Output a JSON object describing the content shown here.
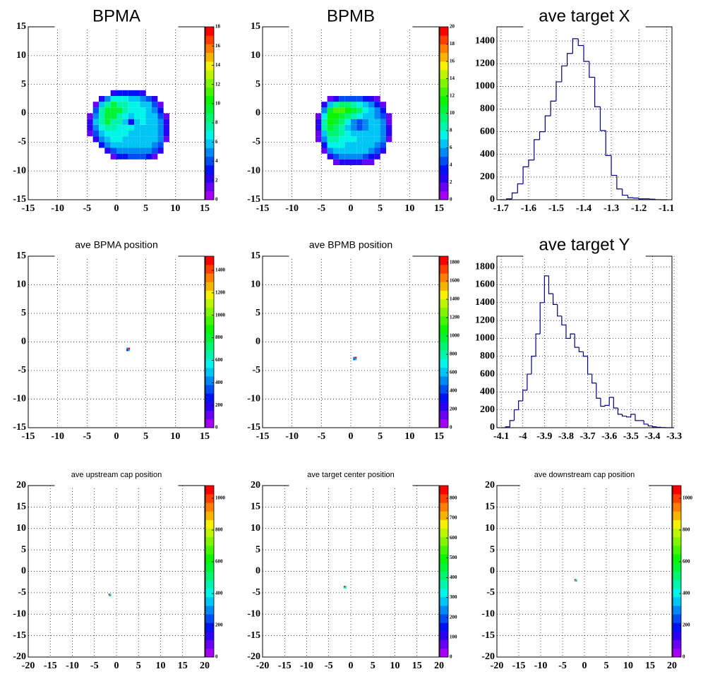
{
  "chart_data": [
    {
      "type": "heatmap",
      "title": "BPMA",
      "xlim": [
        -15,
        15
      ],
      "ylim": [
        -15,
        15
      ],
      "xticks": [
        -15,
        -10,
        -5,
        0,
        5,
        10,
        15
      ],
      "yticks": [
        -15,
        -10,
        -5,
        0,
        5,
        10,
        15
      ],
      "grid": true,
      "xbins": [
        -5,
        -4,
        -3,
        -2,
        -1,
        0,
        1,
        2,
        3,
        4,
        5,
        6,
        7,
        8,
        9
      ],
      "ybins": [
        -8,
        -7,
        -6,
        -5,
        -4,
        -3,
        -2,
        -1,
        0,
        1,
        2,
        3,
        4
      ],
      "z": [
        [
          0,
          0,
          0,
          0,
          1,
          3,
          3,
          4,
          4,
          4,
          3,
          1,
          0,
          0
        ],
        [
          0,
          0,
          0,
          2,
          4,
          5,
          5,
          5,
          5,
          5,
          5,
          4,
          2,
          0
        ],
        [
          0,
          0,
          3,
          5,
          6,
          6,
          6,
          6,
          6,
          6,
          6,
          5,
          4,
          0
        ],
        [
          0,
          2,
          5,
          6,
          7,
          7,
          6,
          6,
          6,
          6,
          6,
          6,
          5,
          1
        ],
        [
          1,
          4,
          6,
          7,
          7,
          7,
          7,
          6,
          6,
          6,
          6,
          6,
          5,
          2
        ],
        [
          2,
          5,
          7,
          8,
          8,
          7,
          7,
          7,
          6,
          6,
          6,
          6,
          5,
          2
        ],
        [
          2,
          6,
          8,
          9,
          8,
          8,
          6,
          3,
          6,
          7,
          6,
          6,
          5,
          2
        ],
        [
          1,
          5,
          8,
          9,
          9,
          8,
          7,
          6,
          7,
          7,
          6,
          6,
          4,
          1
        ],
        [
          0,
          4,
          8,
          9,
          9,
          9,
          8,
          7,
          7,
          7,
          6,
          5,
          3,
          0
        ],
        [
          0,
          1,
          6,
          8,
          9,
          8,
          8,
          7,
          7,
          6,
          6,
          4,
          1,
          0
        ],
        [
          0,
          0,
          2,
          5,
          7,
          7,
          7,
          6,
          6,
          5,
          4,
          2,
          0,
          0
        ],
        [
          0,
          0,
          0,
          0,
          2,
          3,
          3,
          3,
          3,
          2,
          0,
          0,
          0,
          0
        ]
      ],
      "zlim": [
        0,
        18
      ],
      "zticks": [
        0,
        2,
        4,
        6,
        8,
        10,
        12,
        14,
        16,
        18
      ]
    },
    {
      "type": "heatmap",
      "title": "BPMB",
      "xlim": [
        -15,
        15
      ],
      "ylim": [
        -15,
        15
      ],
      "xticks": [
        -15,
        -10,
        -5,
        0,
        5,
        10,
        15
      ],
      "yticks": [
        -15,
        -10,
        -5,
        0,
        5,
        10,
        15
      ],
      "grid": true,
      "xbins": [
        -6,
        -5,
        -4,
        -3,
        -2,
        -1,
        0,
        1,
        2,
        3,
        4,
        5,
        6,
        7,
        8
      ],
      "ybins": [
        -9,
        -8,
        -7,
        -6,
        -5,
        -4,
        -3,
        -2,
        -1,
        0,
        1,
        2,
        3
      ],
      "z": [
        [
          0,
          0,
          0,
          1,
          2,
          2,
          2,
          2,
          1,
          1,
          0,
          0,
          0,
          0
        ],
        [
          0,
          0,
          2,
          4,
          5,
          5,
          5,
          5,
          4,
          3,
          2,
          0,
          0,
          0
        ],
        [
          0,
          1,
          5,
          6,
          6,
          6,
          6,
          6,
          6,
          5,
          4,
          2,
          0,
          0
        ],
        [
          0,
          3,
          7,
          7,
          7,
          6,
          6,
          6,
          6,
          6,
          5,
          4,
          0,
          0
        ],
        [
          1,
          5,
          8,
          8,
          7,
          7,
          7,
          6,
          6,
          6,
          6,
          5,
          1,
          0
        ],
        [
          1,
          6,
          9,
          9,
          8,
          7,
          6,
          6,
          6,
          6,
          6,
          5,
          2,
          0
        ],
        [
          2,
          8,
          10,
          9,
          8,
          6,
          5,
          4,
          5,
          6,
          6,
          5,
          2,
          0
        ],
        [
          2,
          8,
          11,
          10,
          9,
          7,
          5,
          4,
          5,
          6,
          6,
          5,
          1,
          0
        ],
        [
          1,
          7,
          11,
          11,
          10,
          9,
          8,
          7,
          6,
          6,
          5,
          4,
          1,
          0
        ],
        [
          0,
          5,
          10,
          12,
          12,
          11,
          10,
          9,
          7,
          6,
          5,
          3,
          0,
          0
        ],
        [
          0,
          2,
          6,
          8,
          9,
          9,
          8,
          7,
          6,
          5,
          3,
          1,
          0,
          0
        ],
        [
          0,
          0,
          1,
          2,
          4,
          4,
          4,
          4,
          3,
          2,
          1,
          0,
          0,
          0
        ]
      ],
      "zlim": [
        0,
        20
      ],
      "zticks": [
        0,
        2,
        4,
        6,
        8,
        10,
        12,
        14,
        16,
        18,
        20
      ]
    },
    {
      "type": "histogram",
      "title": "ave target X",
      "xlim": [
        -1.715,
        -1.08
      ],
      "ylim": [
        0,
        1525
      ],
      "xticks": [
        -1.7,
        -1.6,
        -1.5,
        -1.4,
        -1.3,
        -1.2,
        -1.1
      ],
      "yticks": [
        0,
        200,
        400,
        600,
        800,
        1000,
        1200,
        1400
      ],
      "grid": true,
      "color": "#000080",
      "bins": [
        -1.7,
        -1.68,
        -1.66,
        -1.64,
        -1.62,
        -1.6,
        -1.58,
        -1.56,
        -1.54,
        -1.52,
        -1.5,
        -1.48,
        -1.46,
        -1.44,
        -1.42,
        -1.4,
        -1.38,
        -1.36,
        -1.34,
        -1.32,
        -1.3,
        -1.28,
        -1.26,
        -1.24,
        -1.22,
        -1.2,
        -1.18,
        -1.16,
        -1.14,
        -1.12,
        -1.1
      ],
      "values": [
        0,
        8,
        60,
        140,
        290,
        350,
        530,
        600,
        740,
        870,
        1040,
        1180,
        1290,
        1420,
        1360,
        1220,
        1080,
        820,
        610,
        390,
        215,
        95,
        40,
        18,
        15,
        8,
        8,
        5,
        1,
        0
      ]
    },
    {
      "type": "heatmap",
      "title": "ave BPMA position",
      "xlim": [
        -15,
        15
      ],
      "ylim": [
        -15,
        15
      ],
      "xticks": [
        -15,
        -10,
        -5,
        0,
        5,
        10,
        15
      ],
      "yticks": [
        -15,
        -10,
        -5,
        0,
        5,
        10,
        15
      ],
      "grid": true,
      "xbins": [
        1.7,
        2,
        2.3
      ],
      "ybins": [
        -1.6,
        -1.3,
        -1
      ],
      "z": [
        [
          300,
          500
        ],
        [
          400,
          1500
        ]
      ],
      "zlim": [
        0,
        1526
      ],
      "zticks": [
        0,
        200,
        400,
        600,
        800,
        1000,
        1200,
        1400
      ]
    },
    {
      "type": "heatmap",
      "title": "ave BPMB position",
      "xlim": [
        -15,
        15
      ],
      "ylim": [
        -15,
        15
      ],
      "xticks": [
        -15,
        -10,
        -5,
        0,
        5,
        10,
        15
      ],
      "yticks": [
        -15,
        -10,
        -5,
        0,
        5,
        10,
        15
      ],
      "grid": true,
      "xbins": [
        0.4,
        0.7,
        1
      ],
      "ybins": [
        -3.2,
        -2.9,
        -2.6
      ],
      "z": [
        [
          400,
          600
        ],
        [
          500,
          1850
        ]
      ],
      "zlim": [
        0,
        1870
      ],
      "zticks": [
        0,
        200,
        400,
        600,
        800,
        1000,
        1200,
        1400,
        1600,
        1800
      ]
    },
    {
      "type": "histogram",
      "title": "ave target Y",
      "xlim": [
        -4.12,
        -3.31
      ],
      "ylim": [
        0,
        1920
      ],
      "xticks": [
        -4.1,
        -4,
        -3.9,
        -3.8,
        -3.7,
        -3.6,
        -3.5,
        -3.4,
        -3.3
      ],
      "yticks": [
        0,
        200,
        400,
        600,
        800,
        1000,
        1200,
        1400,
        1600,
        1800
      ],
      "grid": true,
      "color": "#000080",
      "bins": [
        -4.1,
        -4.08,
        -4.06,
        -4.04,
        -4.02,
        -4,
        -3.98,
        -3.96,
        -3.94,
        -3.92,
        -3.9,
        -3.88,
        -3.86,
        -3.84,
        -3.82,
        -3.8,
        -3.78,
        -3.76,
        -3.74,
        -3.72,
        -3.7,
        -3.68,
        -3.66,
        -3.64,
        -3.62,
        -3.6,
        -3.58,
        -3.56,
        -3.54,
        -3.52,
        -3.5,
        -3.48,
        -3.46,
        -3.44,
        -3.42,
        -3.4,
        -3.38,
        -3.36,
        -3.34,
        -3.32,
        -3.3
      ],
      "values": [
        0,
        10,
        80,
        200,
        300,
        420,
        600,
        800,
        1050,
        1400,
        1700,
        1500,
        1380,
        1250,
        1150,
        1000,
        1050,
        900,
        850,
        800,
        600,
        500,
        330,
        240,
        250,
        340,
        220,
        150,
        130,
        120,
        150,
        80,
        80,
        40,
        20,
        10,
        5,
        2,
        0,
        0
      ]
    },
    {
      "type": "heatmap",
      "title": "ave upstream cap position",
      "xlim": [
        -20,
        20
      ],
      "ylim": [
        -20,
        20
      ],
      "xticks": [
        -20,
        -15,
        -10,
        -5,
        0,
        5,
        10,
        15,
        20
      ],
      "yticks": [
        -20,
        -15,
        -10,
        -5,
        0,
        5,
        10,
        15,
        20
      ],
      "grid": true,
      "xbins": [
        -1.8,
        -1.5,
        -1.2
      ],
      "ybins": [
        -5.8,
        -5.5,
        -5.2
      ],
      "z": [
        [
          500,
          300
        ],
        [
          1050,
          400
        ]
      ],
      "zlim": [
        0,
        1080
      ],
      "zticks": [
        0,
        200,
        400,
        600,
        800,
        1000
      ]
    },
    {
      "type": "heatmap",
      "title": "ave target center  position",
      "xlim": [
        -20,
        20
      ],
      "ylim": [
        -20,
        20
      ],
      "xticks": [
        -20,
        -15,
        -10,
        -5,
        0,
        5,
        10,
        15,
        20
      ],
      "yticks": [
        -20,
        -15,
        -10,
        -5,
        0,
        5,
        10,
        15,
        20
      ],
      "grid": true,
      "xbins": [
        -1.6,
        -1.3,
        -1
      ],
      "ybins": [
        -4,
        -3.7,
        -3.4
      ],
      "z": [
        [
          300,
          400
        ],
        [
          850,
          300
        ]
      ],
      "zlim": [
        0,
        864
      ],
      "zticks": [
        0,
        100,
        200,
        300,
        400,
        500,
        600,
        700,
        800
      ]
    },
    {
      "type": "heatmap",
      "title": "ave downstream cap position",
      "xlim": [
        -20,
        20
      ],
      "ylim": [
        -20,
        20
      ],
      "xticks": [
        -20,
        -15,
        -10,
        -5,
        0,
        5,
        10,
        15,
        20
      ],
      "yticks": [
        -20,
        -15,
        -10,
        -5,
        0,
        5,
        10,
        15,
        20
      ],
      "grid": true,
      "xbins": [
        -2.3,
        -2,
        -1.7
      ],
      "ybins": [
        -2.4,
        -2.1,
        -1.8
      ],
      "z": [
        [
          400,
          300
        ],
        [
          1050,
          500
        ]
      ],
      "zlim": [
        0,
        1080
      ],
      "zticks": [
        0,
        200,
        400,
        600,
        800,
        1000
      ]
    }
  ]
}
